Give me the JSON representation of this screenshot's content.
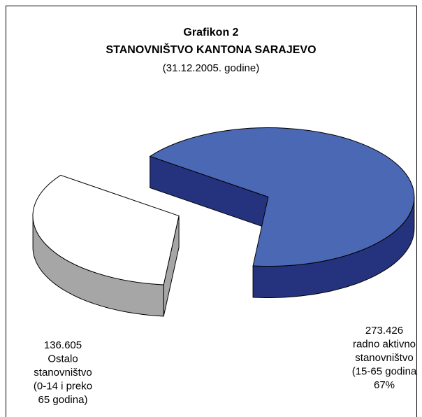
{
  "chart_data": {
    "type": "pie",
    "title": "Grafikon 2",
    "subtitle": "STANOVNIŠTVO KANTONA SARAJEVO",
    "date_label": "(31.12.2005. godine)",
    "categories": [
      [
        "Ostalo",
        "stanovništvo",
        "(0-14 i preko",
        "65 godina)"
      ],
      [
        "radno aktivno",
        "stanovništvo",
        "(15-65 godina"
      ]
    ],
    "values": [
      136605,
      273426
    ],
    "value_labels": [
      "136.605",
      "273.426"
    ],
    "percent_labels": [
      null,
      "67%"
    ],
    "colors": [
      "#ffffff",
      "#4a68b4"
    ],
    "side_colors": [
      "#a6a6a6",
      "#25337e"
    ],
    "three_d": true,
    "exploded": true
  }
}
